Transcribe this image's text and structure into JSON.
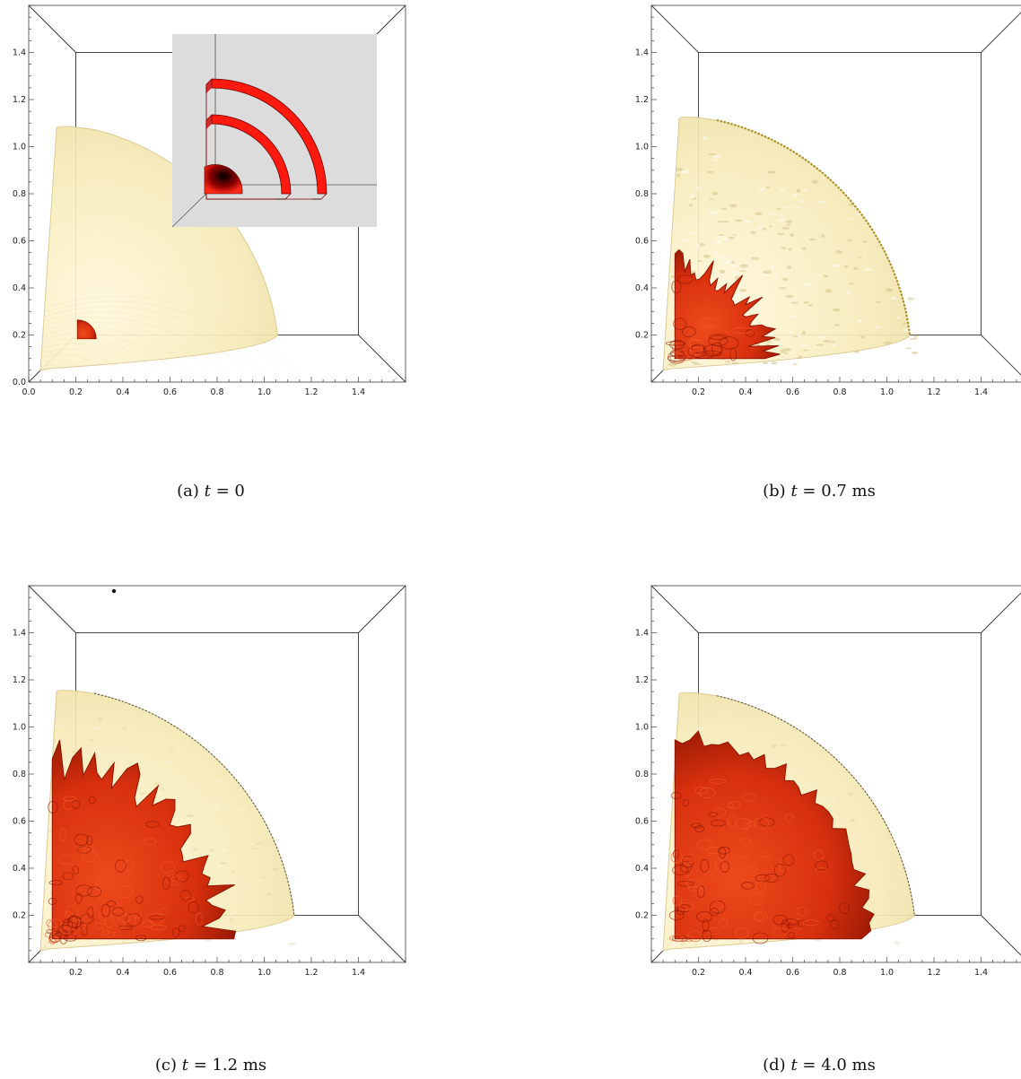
{
  "figure": {
    "panels": [
      {
        "id": "a",
        "caption_prefix": "(a)",
        "time_var": "t",
        "time_expr": "= 0",
        "x_ticks": [
          "0.0",
          "0.2",
          "0.4",
          "0.6",
          "0.8",
          "1.0",
          "1.2",
          "1.4"
        ],
        "y_ticks": [
          "0.0",
          "0.2",
          "0.4",
          "0.6",
          "0.8",
          "1.0",
          "1.2",
          "1.4"
        ],
        "has_inset": true,
        "outer_radius": 1.08,
        "inner_radius": 0.08,
        "outer_texture": "smooth-ripple",
        "inner_texture": "smooth"
      },
      {
        "id": "b",
        "caption_prefix": "(b)",
        "time_var": "t",
        "time_expr": "= 0.7 ms",
        "x_ticks": [
          "0.2",
          "0.4",
          "0.6",
          "0.8",
          "1.0",
          "1.2",
          "1.4"
        ],
        "y_ticks": [
          "0.2",
          "0.4",
          "0.6",
          "0.8",
          "1.0",
          "1.2",
          "1.4"
        ],
        "has_inset": false,
        "outer_radius": 1.12,
        "inner_radius": 0.38,
        "outer_texture": "wrinkled",
        "inner_texture": "bubbly"
      },
      {
        "id": "c",
        "caption_prefix": "(c)",
        "time_var": "t",
        "time_expr": "= 1.2 ms",
        "x_ticks": [
          "0.2",
          "0.4",
          "0.6",
          "0.8",
          "1.0",
          "1.2",
          "1.4"
        ],
        "y_ticks": [
          "0.2",
          "0.4",
          "0.6",
          "0.8",
          "1.0",
          "1.2",
          "1.4"
        ],
        "has_inset": false,
        "outer_radius": 1.15,
        "inner_radius": 0.72,
        "outer_texture": "smooth",
        "inner_texture": "turbulent"
      },
      {
        "id": "d",
        "caption_prefix": "(d)",
        "time_var": "t",
        "time_expr": "= 4.0 ms",
        "x_ticks": [
          "0.2",
          "0.4",
          "0.6",
          "0.8",
          "1.0",
          "1.2",
          "1.4"
        ],
        "y_ticks": [
          "0.2",
          "0.4",
          "0.6",
          "0.8",
          "1.0",
          "1.2",
          "1.4"
        ],
        "has_inset": false,
        "outer_radius": 1.14,
        "inner_radius": 0.82,
        "outer_texture": "smooth",
        "inner_texture": "wrinkled"
      }
    ],
    "colors": {
      "outer_surface": "#f6eab7",
      "outer_edge": "#d8c78c",
      "inner_surface": "#d8300e",
      "inner_dark": "#8e1603",
      "inset_background": "#dcdcdc",
      "inset_red": "#ff1a10",
      "box_lines": "#333333"
    }
  }
}
